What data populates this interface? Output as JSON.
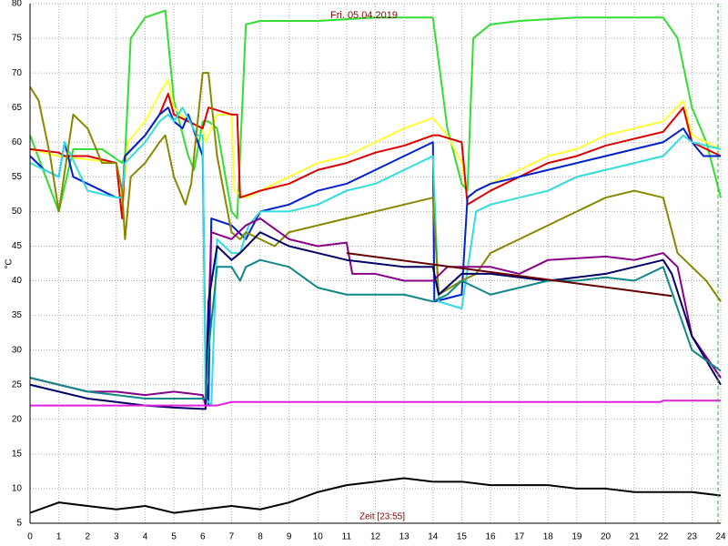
{
  "chart_data": {
    "type": "line",
    "title": "Fri. 05.04.2019",
    "x_label": "Zeit [23:55]",
    "y_label": "°C",
    "xlim": [
      0,
      24
    ],
    "ylim": [
      5,
      80
    ],
    "xticks": [
      0,
      1,
      2,
      3,
      4,
      5,
      6,
      7,
      8,
      9,
      10,
      11,
      12,
      13,
      14,
      15,
      16,
      17,
      18,
      19,
      20,
      21,
      22,
      23,
      24
    ],
    "yticks": [
      5,
      10,
      15,
      20,
      25,
      30,
      35,
      40,
      45,
      50,
      55,
      60,
      65,
      70,
      75,
      80
    ],
    "grid": true,
    "series": [
      {
        "color": "#33dd33",
        "x": [
          0,
          1,
          1.5,
          2.5,
          3.2,
          3.3,
          3.5,
          4,
          4.7,
          5,
          5.5,
          5.7,
          6,
          6.2,
          6.5,
          7,
          7.2,
          7.5,
          8,
          10,
          12,
          14,
          14.5,
          15,
          15.2,
          15.4,
          16,
          17,
          19,
          22,
          22.5,
          23,
          23.5,
          24
        ],
        "values": [
          61,
          50,
          59,
          59,
          57,
          58,
          75,
          78,
          79,
          66,
          58,
          56,
          63,
          63,
          62,
          50,
          49,
          77,
          77.5,
          77.5,
          78,
          78,
          62,
          54,
          53,
          75,
          77,
          77.5,
          78,
          78,
          75,
          65,
          60,
          52
        ]
      },
      {
        "color": "#ffff33",
        "x": [
          0,
          1,
          2,
          3,
          3.2,
          3.4,
          4,
          4.5,
          4.8,
          5,
          5.5,
          6,
          6.1,
          6.5,
          7,
          7.1,
          7.5,
          8,
          9,
          10,
          11,
          12,
          13,
          14,
          14.5,
          15,
          15.2,
          15.5,
          16,
          17,
          18,
          19,
          20,
          21,
          22,
          22.7,
          23,
          23.5,
          24
        ],
        "values": [
          59,
          58,
          57.5,
          57,
          50,
          60,
          63,
          67,
          69,
          65,
          63,
          62,
          60,
          64,
          64,
          53,
          52,
          53,
          55,
          57,
          58,
          60,
          62,
          63.5,
          61,
          57,
          52,
          53,
          54,
          56,
          58,
          59,
          61,
          62,
          63,
          66,
          61,
          60,
          59
        ]
      },
      {
        "color": "#dd0000",
        "x": [
          0,
          1,
          1.2,
          2,
          3,
          3.2,
          3.3,
          4,
          4.5,
          4.8,
          5,
          5.5,
          6,
          6.2,
          7,
          7.2,
          7.3,
          8,
          9,
          10,
          11,
          12,
          13,
          14,
          14.2,
          15,
          15.2,
          16,
          17,
          18,
          19,
          20,
          21,
          22,
          22.7,
          23,
          24
        ],
        "values": [
          59,
          58.5,
          58,
          58,
          57,
          49,
          58,
          61,
          64,
          67,
          64,
          63,
          62,
          65,
          64,
          64,
          52,
          53,
          54,
          56,
          57,
          58.5,
          59.5,
          61,
          61,
          60,
          51,
          53,
          55,
          57,
          58,
          59.5,
          60.5,
          61.5,
          65,
          60,
          58
        ]
      },
      {
        "color": "#0022cc",
        "x": [
          0,
          0.5,
          1,
          1.2,
          1.5,
          2,
          3,
          3.2,
          3.3,
          4,
          4.5,
          4.8,
          5,
          5.3,
          5.5,
          6,
          6.1,
          6.2,
          6.3,
          7,
          7.5,
          8,
          9,
          10,
          11,
          12,
          13,
          14,
          14.05,
          15,
          15.2,
          15.5,
          16,
          17,
          18,
          19,
          20,
          21,
          22,
          22.7,
          23,
          23.4,
          24
        ],
        "values": [
          58,
          56,
          55,
          60,
          55,
          54,
          52,
          52,
          58,
          61,
          64,
          65,
          63,
          62,
          64,
          58,
          27,
          22,
          49,
          48,
          46,
          50,
          51,
          53,
          54,
          56,
          58,
          60,
          37,
          38,
          52,
          53,
          54,
          55,
          56,
          57,
          58,
          59,
          60,
          62,
          60,
          58,
          58
        ]
      },
      {
        "color": "#33dddd",
        "x": [
          0,
          1,
          1.2,
          2,
          3,
          3.2,
          3.3,
          4,
          4.5,
          4.8,
          5,
          5.3,
          5.8,
          6,
          6.1,
          6.3,
          6.5,
          7,
          7.3,
          7.6,
          8,
          9,
          10,
          11,
          12,
          13,
          14,
          14.2,
          15,
          15.5,
          16,
          17,
          18,
          19,
          20,
          21,
          22,
          22.7,
          23,
          24
        ],
        "values": [
          57,
          55,
          60,
          53,
          52,
          52,
          57,
          60,
          63,
          64,
          63,
          65,
          61,
          61,
          23,
          22,
          46,
          44,
          44,
          48,
          50,
          50,
          51,
          53,
          54,
          56,
          58,
          37,
          36,
          50,
          51,
          52,
          53,
          55,
          56,
          57,
          58,
          61,
          60,
          59
        ]
      },
      {
        "color": "#888800",
        "x": [
          0,
          0.3,
          0.7,
          1,
          1.5,
          2,
          2.5,
          3,
          3.2,
          3.3,
          3.5,
          4,
          4.5,
          4.7,
          5,
          5.4,
          5.6,
          6,
          6.2,
          6.5,
          7,
          7.3,
          7.5,
          8,
          8.5,
          9,
          10,
          11,
          12,
          13,
          14,
          14.2,
          15,
          15.5,
          16,
          17,
          18,
          19,
          20,
          21,
          22,
          22.5,
          23,
          23.5,
          24
        ],
        "values": [
          68,
          66,
          58,
          50,
          64,
          62,
          57,
          57,
          53,
          46,
          55,
          57,
          60,
          61,
          55,
          51,
          54,
          70,
          70,
          58,
          47,
          46,
          47,
          46,
          45,
          47,
          48,
          49,
          50,
          51,
          52,
          38,
          40,
          41,
          44,
          46,
          48,
          50,
          52,
          53,
          52,
          44,
          42,
          40,
          37
        ]
      },
      {
        "color": "#880088",
        "x": [
          0,
          1,
          2,
          3,
          4,
          5,
          6,
          6.1,
          6.3,
          7,
          7.5,
          8,
          9,
          10,
          11,
          11.2,
          12,
          13,
          14,
          14.5,
          15,
          16,
          17,
          17.5,
          18,
          20,
          21,
          22,
          22.5,
          23,
          24
        ],
        "values": [
          26,
          25,
          24,
          24,
          23.5,
          24,
          23.5,
          22,
          47,
          46,
          48,
          49,
          46,
          45,
          45.5,
          41,
          41,
          40,
          40,
          42,
          42,
          42,
          41,
          42,
          43,
          43.5,
          43,
          44,
          42,
          32,
          26
        ]
      },
      {
        "color": "#000066",
        "x": [
          0,
          1,
          2,
          3,
          4,
          5,
          6,
          6.1,
          6.2,
          6.5,
          7,
          7.3,
          8,
          9,
          10,
          11,
          12,
          13,
          14,
          14.2,
          15,
          16,
          17,
          18,
          19,
          20,
          21,
          22,
          22.3,
          23,
          24
        ],
        "values": [
          25,
          24,
          23,
          22.5,
          22,
          21.7,
          21.5,
          21.5,
          37,
          45,
          43,
          44,
          47,
          45,
          44,
          43,
          42.5,
          42,
          42,
          38,
          41,
          41,
          40.5,
          40,
          40.5,
          41,
          42,
          43,
          41,
          32,
          25
        ]
      },
      {
        "color": "#118888",
        "x": [
          0,
          2,
          4,
          5.5,
          6.1,
          6.2,
          6.5,
          7,
          7.3,
          7.5,
          8,
          9,
          10,
          11,
          12,
          13,
          14,
          14.5,
          15,
          16,
          17,
          18,
          19,
          20,
          21,
          22,
          22.5,
          23,
          24
        ],
        "values": [
          26,
          24,
          23,
          23,
          23,
          30,
          42,
          42,
          40,
          42,
          43,
          42,
          39,
          38,
          38,
          38,
          37,
          38,
          40,
          38,
          39,
          40,
          40,
          40.5,
          40,
          42,
          36,
          30,
          27
        ]
      },
      {
        "color": "#dd22dd",
        "x": [
          0,
          6.5,
          7,
          21.9,
          22,
          24
        ],
        "values": [
          22,
          22,
          22.5,
          22.5,
          22.7,
          22.7
        ]
      },
      {
        "color": "#660000",
        "x": [
          11,
          22.3
        ],
        "values": [
          44,
          37.8
        ]
      },
      {
        "color": "#000000",
        "x": [
          0,
          1,
          2,
          3,
          4,
          5,
          6,
          7,
          8,
          9,
          10,
          11,
          12,
          13,
          14,
          15,
          16,
          17,
          18,
          19,
          20,
          21,
          22,
          23,
          24
        ],
        "values": [
          6.5,
          8,
          7.5,
          7,
          7.5,
          6.5,
          7,
          7.5,
          7,
          8,
          9.5,
          10.5,
          11,
          11.5,
          11,
          11,
          10.5,
          10.5,
          10.5,
          10,
          10,
          9.5,
          9.5,
          9.5,
          9
        ]
      }
    ]
  }
}
